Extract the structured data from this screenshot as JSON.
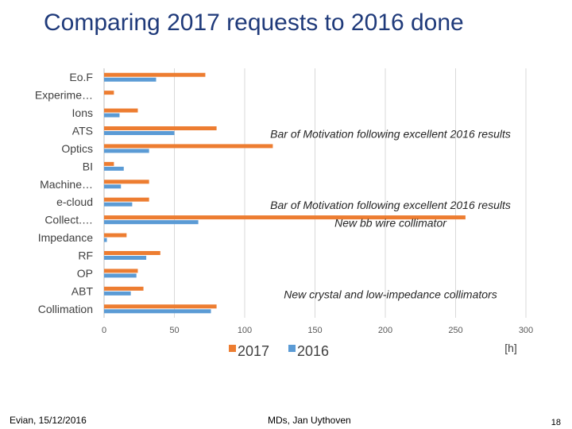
{
  "slide": {
    "title": "Comparing 2017 requests to 2016 done",
    "footer_left": "Evian, 15/12/2016",
    "footer_center": "MDs, Jan Uythoven",
    "page_number": "18"
  },
  "chart_data": {
    "type": "bar",
    "orientation": "horizontal",
    "title": "Comparing 2017 requests to 2016 done",
    "categories": [
      "Eo.F",
      "Experime…",
      "Ions",
      "ATS",
      "Optics",
      "BI",
      "Machine…",
      "e-cloud",
      "Collect.…",
      "Impedance",
      "RF",
      "OP",
      "ABT",
      "Collimation"
    ],
    "series": [
      {
        "name": "2017",
        "color": "#ed7d31",
        "values": [
          72,
          7,
          24,
          80,
          120,
          7,
          32,
          32,
          257,
          16,
          40,
          24,
          28,
          80
        ]
      },
      {
        "name": "2016",
        "color": "#5b9bd5",
        "values": [
          37,
          0,
          11,
          50,
          32,
          14,
          12,
          20,
          67,
          2,
          30,
          23,
          19,
          76
        ]
      }
    ],
    "xlim": [
      0,
      300
    ],
    "xticks": [
      0,
      50,
      100,
      150,
      200,
      250,
      300
    ],
    "xlabel": "[h]",
    "grid": true,
    "legend": "bottom-center",
    "annotations": [
      {
        "text": "Bar of Motivation following excellent 2016 results",
        "category": "ATS"
      },
      {
        "text": "Bar of Motivation following excellent 2016 results",
        "category": "e-cloud"
      },
      {
        "text": "New bb wire collimator",
        "category": "Collect.…"
      },
      {
        "text": "New crystal and low-impedance collimators",
        "category": "ABT"
      }
    ]
  }
}
